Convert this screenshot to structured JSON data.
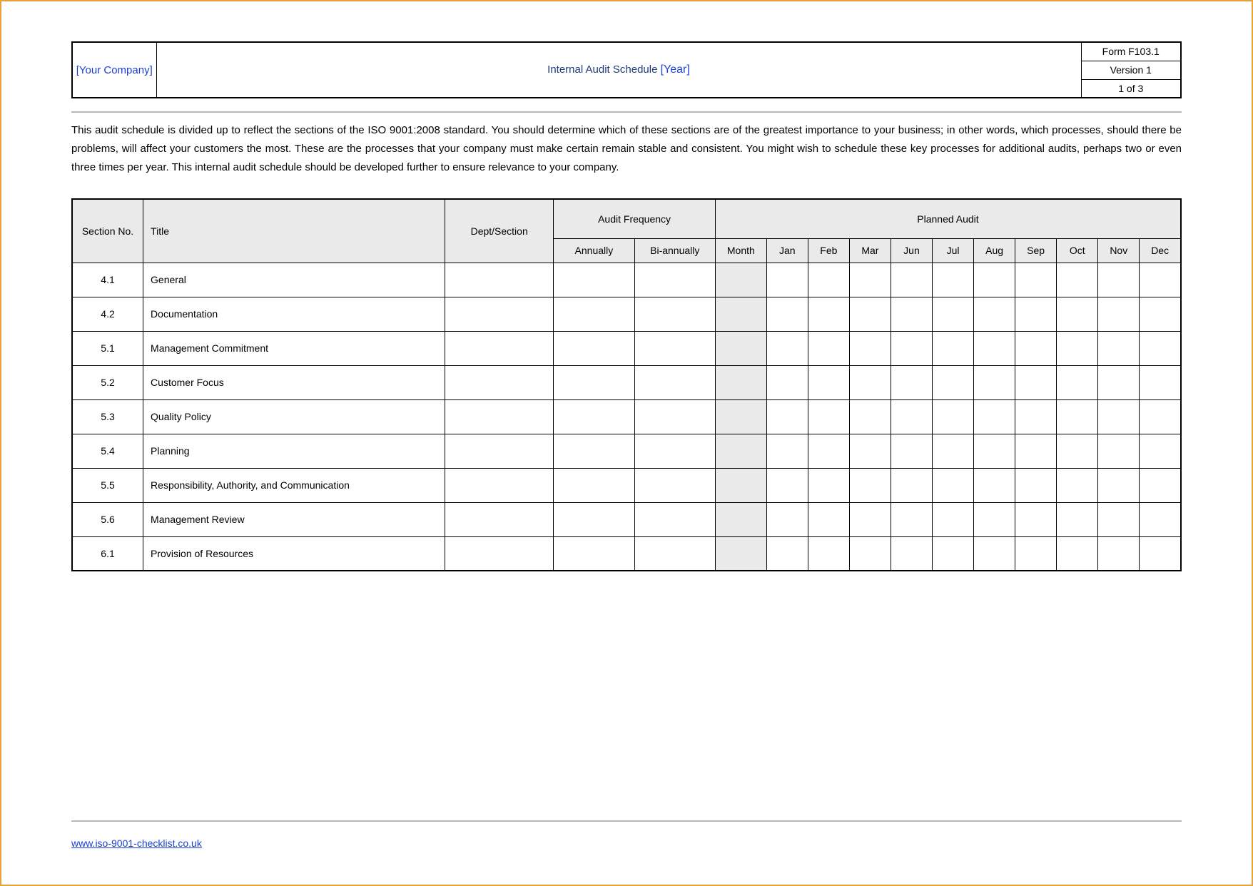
{
  "header": {
    "company_placeholder": "[Your Company]",
    "title": "Internal Audit Schedule",
    "year_placeholder": "[Year]",
    "form": "Form F103.1",
    "version": "Version 1",
    "page": "1 of 3"
  },
  "intro": "This audit schedule is divided up to reflect the sections of the ISO 9001:2008 standard. You should determine which of these sections are of the greatest importance to your business; in other words, which processes, should there be problems, will affect your customers the most. These are the processes that your company must make certain remain stable and consistent. You might wish to schedule these key processes for additional audits, perhaps two or even three times per year. This internal audit schedule should be developed further to ensure relevance to your company.",
  "table": {
    "type": "table",
    "background_color": "#ffffff",
    "header_bg": "#eaeaea",
    "border_color": "#000000",
    "columns": {
      "section": "Section No.",
      "title": "Title",
      "dept": "Dept/Section",
      "freq_group": "Audit Frequency",
      "freq_annually": "Annually",
      "freq_biannually": "Bi-annually",
      "planned_group": "Planned Audit",
      "months": [
        "Month",
        "Jan",
        "Feb",
        "Mar",
        "Jun",
        "Jul",
        "Aug",
        "Sep",
        "Oct",
        "Nov",
        "Dec"
      ]
    },
    "rows": [
      {
        "section": "4.1",
        "title": "General"
      },
      {
        "section": "4.2",
        "title": "Documentation"
      },
      {
        "section": "5.1",
        "title": "Management Commitment"
      },
      {
        "section": "5.2",
        "title": "Customer Focus"
      },
      {
        "section": "5.3",
        "title": "Quality Policy"
      },
      {
        "section": "5.4",
        "title": "Planning"
      },
      {
        "section": "5.5",
        "title": "Responsibility, Authority, and Communication"
      },
      {
        "section": "5.6",
        "title": "Management Review"
      },
      {
        "section": "6.1",
        "title": "Provision of Resources"
      }
    ]
  },
  "footer": {
    "link_text": "www.iso-9001-checklist.co.uk"
  },
  "colors": {
    "page_border": "#e8a23a",
    "link_blue": "#1a3fd6",
    "title_blue": "#223a7a",
    "rule_gray": "#b8b8b8"
  }
}
